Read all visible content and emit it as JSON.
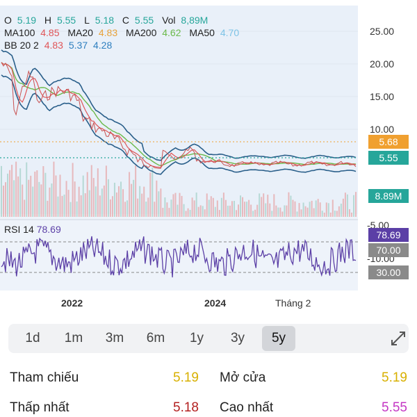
{
  "legend": {
    "ohlc": [
      {
        "label": "O",
        "value": "5.19"
      },
      {
        "label": "H",
        "value": "5.55"
      },
      {
        "label": "L",
        "value": "5.18"
      },
      {
        "label": "C",
        "value": "5.55"
      },
      {
        "label": "Vol",
        "value": "8,89M"
      }
    ],
    "ma": [
      {
        "label": "MA100",
        "value": "4.85",
        "color": "#e05558"
      },
      {
        "label": "MA20",
        "value": "4.83",
        "color": "#e8a23a"
      },
      {
        "label": "MA200",
        "value": "4.62",
        "color": "#6ab94a"
      },
      {
        "label": "MA50",
        "value": "4.70",
        "color": "#7dc3e6"
      }
    ],
    "bb": {
      "label": "BB 20 2",
      "v1": "4.83",
      "v2": "5.37",
      "v3": "4.28",
      "c1": "#e05558",
      "c2": "#2e7fbf",
      "c3": "#2e7fbf"
    },
    "value_color": "#26a69a"
  },
  "axis": {
    "price_ticks": [
      "25.00",
      "20.00",
      "15.00",
      "10.00"
    ],
    "rsi_ticks": [
      "-5.00",
      "-10.00"
    ],
    "x_labels": [
      "2022",
      "2024",
      "Tháng 2"
    ]
  },
  "badges": {
    "ma_price": "5.68",
    "last_price": "5.55",
    "volume": "8.89M",
    "rsi_value": "78.69",
    "rsi_upper": "70.00",
    "rsi_lower": "30.00"
  },
  "rsi": {
    "label": "RSI 14",
    "value": "78.69",
    "color": "#5b3fa6"
  },
  "timeframes": [
    "1d",
    "1m",
    "3m",
    "6m",
    "1y",
    "3y",
    "5y"
  ],
  "active_timeframe": "5y",
  "stats": [
    {
      "label": "Tham chiếu",
      "value": "5.19",
      "color": "#d8b000"
    },
    {
      "label": "Mở cửa",
      "value": "5.19",
      "color": "#d8b000"
    },
    {
      "label": "Thấp nhất",
      "value": "5.18",
      "color": "#b32020"
    },
    {
      "label": "Cao nhất",
      "value": "5.55",
      "color": "#c437c4"
    }
  ],
  "colors": {
    "teal": "#26a69a",
    "orange": "#f0a030",
    "gray": "#8a8a8a",
    "rsi_line": "#5b3fa6",
    "bb": "#2a5f8a",
    "ma_green": "#6ab94a"
  }
}
